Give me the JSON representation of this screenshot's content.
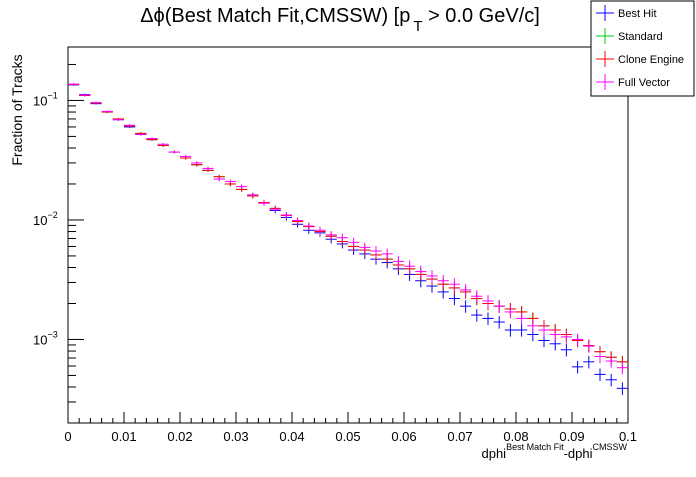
{
  "chart_data": {
    "type": "scatter",
    "title": {
      "prefix": "Δϕ(Best Match Fit,CMSSW) [p",
      "sub": "T",
      "suffix": " > 0.0 GeV/c]"
    },
    "xlabel": {
      "a": "dphi",
      "a_sup": "Best Match Fit",
      "b": "-dphi",
      "b_sup": "CMSSW"
    },
    "ylabel": "Fraction of Tracks",
    "xlim": [
      0,
      0.1
    ],
    "ylim": [
      0.0002,
      0.28
    ],
    "yscale": "log",
    "grid": false,
    "legend_position": "top-right",
    "x_ticks": [
      {
        "v": 0,
        "label": "0"
      },
      {
        "v": 0.01,
        "label": "0.01"
      },
      {
        "v": 0.02,
        "label": "0.02"
      },
      {
        "v": 0.03,
        "label": "0.03"
      },
      {
        "v": 0.04,
        "label": "0.04"
      },
      {
        "v": 0.05,
        "label": "0.05"
      },
      {
        "v": 0.06,
        "label": "0.06"
      },
      {
        "v": 0.07,
        "label": "0.07"
      },
      {
        "v": 0.08,
        "label": "0.08"
      },
      {
        "v": 0.09,
        "label": "0.09"
      },
      {
        "v": 0.1,
        "label": "0.1"
      }
    ],
    "y_ticks": [
      {
        "v": 0.1,
        "base": "10",
        "exp": "−1"
      },
      {
        "v": 0.01,
        "base": "10",
        "exp": "−2"
      },
      {
        "v": 0.001,
        "base": "10",
        "exp": "−3"
      }
    ],
    "bin_width": 0.002,
    "x": [
      0.001,
      0.003,
      0.005,
      0.007,
      0.009,
      0.011,
      0.013,
      0.015,
      0.017,
      0.019,
      0.021,
      0.023,
      0.025,
      0.027,
      0.029,
      0.031,
      0.033,
      0.035,
      0.037,
      0.039,
      0.041,
      0.043,
      0.045,
      0.047,
      0.049,
      0.051,
      0.053,
      0.055,
      0.057,
      0.059,
      0.061,
      0.063,
      0.065,
      0.067,
      0.069,
      0.071,
      0.073,
      0.075,
      0.077,
      0.079,
      0.081,
      0.083,
      0.085,
      0.087,
      0.089,
      0.091,
      0.093,
      0.095,
      0.097,
      0.099
    ],
    "series": [
      {
        "name": "Best Hit",
        "color": "#0000ff",
        "values": [
          0.135,
          0.112,
          0.094,
          0.08,
          0.069,
          0.06,
          0.052,
          0.047,
          0.042,
          0.037,
          0.033,
          0.029,
          0.026,
          0.022,
          0.02,
          0.018,
          0.016,
          0.014,
          0.012,
          0.0105,
          0.0092,
          0.0082,
          0.0078,
          0.0069,
          0.0063,
          0.0056,
          0.0052,
          0.0047,
          0.0044,
          0.0039,
          0.0035,
          0.0031,
          0.0028,
          0.0025,
          0.0022,
          0.0019,
          0.0016,
          0.0015,
          0.0014,
          0.0012,
          0.0012,
          0.0011,
          0.00098,
          0.00092,
          0.00082,
          0.00059,
          0.00065,
          0.00051,
          0.00046,
          0.00039
        ]
      },
      {
        "name": "Standard",
        "color": "#00cc00",
        "values": [
          0.136,
          0.11,
          0.095,
          0.08,
          0.07,
          0.061,
          0.053,
          0.047,
          0.042,
          0.037,
          0.033,
          0.029,
          0.026,
          0.023,
          0.02,
          0.018,
          0.0159,
          0.014,
          0.0125,
          0.0109,
          0.0097,
          0.0088,
          0.008,
          0.0073,
          0.0066,
          0.006,
          0.0056,
          0.0051,
          0.0047,
          0.0042,
          0.0039,
          0.0035,
          0.0032,
          0.0029,
          0.0027,
          0.0025,
          0.0022,
          0.002,
          0.0019,
          0.0018,
          0.0017,
          0.0015,
          0.0013,
          0.0012,
          0.0011,
          0.00098,
          0.00089,
          0.00079,
          0.00071,
          0.00065
        ]
      },
      {
        "name": "Clone Engine",
        "color": "#ff0000",
        "values": [
          0.136,
          0.11,
          0.095,
          0.08,
          0.07,
          0.061,
          0.053,
          0.047,
          0.042,
          0.037,
          0.033,
          0.029,
          0.026,
          0.023,
          0.02,
          0.018,
          0.0159,
          0.014,
          0.0125,
          0.0109,
          0.0097,
          0.0088,
          0.008,
          0.0073,
          0.0066,
          0.006,
          0.0056,
          0.0051,
          0.0047,
          0.0042,
          0.0039,
          0.0035,
          0.0032,
          0.0029,
          0.0027,
          0.0025,
          0.0022,
          0.002,
          0.0019,
          0.0018,
          0.0017,
          0.0015,
          0.0013,
          0.0012,
          0.0011,
          0.00098,
          0.00089,
          0.00079,
          0.00071,
          0.00065
        ]
      },
      {
        "name": "Full Vector",
        "color": "#ff00ff",
        "values": [
          0.137,
          0.111,
          0.096,
          0.081,
          0.069,
          0.062,
          0.052,
          0.048,
          0.043,
          0.037,
          0.034,
          0.03,
          0.027,
          0.022,
          0.021,
          0.019,
          0.0162,
          0.0138,
          0.0123,
          0.011,
          0.0099,
          0.0089,
          0.0082,
          0.0075,
          0.0071,
          0.0065,
          0.0059,
          0.0055,
          0.0052,
          0.0045,
          0.0041,
          0.0037,
          0.0034,
          0.0031,
          0.0029,
          0.0026,
          0.0023,
          0.0021,
          0.0019,
          0.0017,
          0.0015,
          0.0013,
          0.0012,
          0.0011,
          0.00105,
          0.001,
          0.00088,
          0.00072,
          0.00066,
          0.00058
        ]
      }
    ]
  }
}
